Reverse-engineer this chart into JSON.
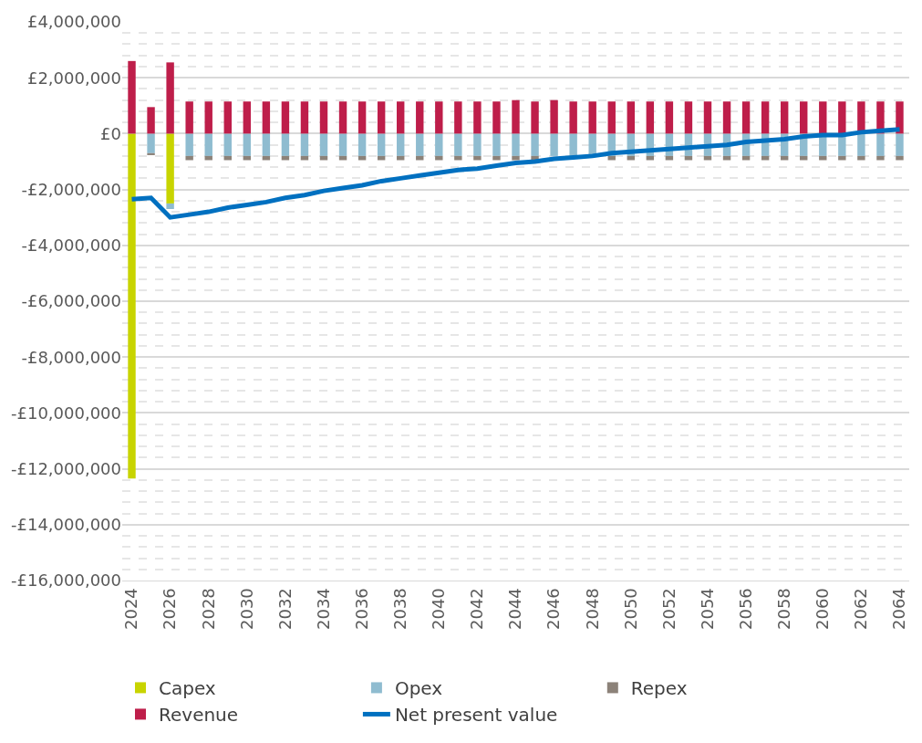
{
  "chart_data": {
    "type": "bar",
    "stacked": true,
    "x": [
      2024,
      2025,
      2026,
      2027,
      2028,
      2029,
      2030,
      2031,
      2032,
      2033,
      2034,
      2035,
      2036,
      2037,
      2038,
      2039,
      2040,
      2041,
      2042,
      2043,
      2044,
      2045,
      2046,
      2047,
      2048,
      2049,
      2050,
      2051,
      2052,
      2053,
      2054,
      2055,
      2056,
      2057,
      2058,
      2059,
      2060,
      2061,
      2062,
      2063,
      2064
    ],
    "series": [
      {
        "name": "Capex",
        "color": "#c8d400",
        "values": [
          -12350000,
          null,
          -2500000,
          null,
          null,
          null,
          null,
          null,
          null,
          null,
          null,
          null,
          null,
          null,
          null,
          null,
          null,
          null,
          null,
          null,
          null,
          null,
          null,
          null,
          null,
          null,
          null,
          null,
          null,
          null,
          null,
          null,
          null,
          null,
          null,
          null,
          null,
          null,
          null,
          null,
          null
        ]
      },
      {
        "name": "Opex",
        "color": "#8fbcd0",
        "values": [
          null,
          -700000,
          -200000,
          -800000,
          -800000,
          -800000,
          -800000,
          -800000,
          -800000,
          -800000,
          -800000,
          -800000,
          -800000,
          -800000,
          -800000,
          -800000,
          -800000,
          -800000,
          -800000,
          -800000,
          -800000,
          -800000,
          -800000,
          -800000,
          -800000,
          -800000,
          -800000,
          -800000,
          -800000,
          -800000,
          -800000,
          -800000,
          -800000,
          -800000,
          -800000,
          -800000,
          -800000,
          -800000,
          -800000,
          -800000,
          -800000
        ]
      },
      {
        "name": "Repex",
        "color": "#8c8279",
        "values": [
          null,
          -70000,
          null,
          -150000,
          -150000,
          -150000,
          -150000,
          -150000,
          -150000,
          -150000,
          -150000,
          -150000,
          -150000,
          -150000,
          -150000,
          -150000,
          -150000,
          -150000,
          -150000,
          -150000,
          -150000,
          -150000,
          null,
          null,
          null,
          -150000,
          -150000,
          -150000,
          -150000,
          -150000,
          -150000,
          -150000,
          -150000,
          -150000,
          -150000,
          -150000,
          -150000,
          -150000,
          -150000,
          -150000,
          -150000
        ]
      },
      {
        "name": "Revenue",
        "color": "#be1e4a",
        "values": [
          2600000,
          950000,
          2550000,
          1150000,
          1150000,
          1150000,
          1150000,
          1150000,
          1150000,
          1150000,
          1150000,
          1150000,
          1150000,
          1150000,
          1150000,
          1150000,
          1150000,
          1150000,
          1150000,
          1150000,
          1200000,
          1150000,
          1200000,
          1150000,
          1150000,
          1150000,
          1150000,
          1150000,
          1150000,
          1150000,
          1150000,
          1150000,
          1150000,
          1150000,
          1150000,
          1150000,
          1150000,
          1150000,
          1150000,
          1150000,
          1150000
        ]
      },
      {
        "name": "Net present value",
        "color": "#0070c0",
        "type": "line",
        "values": [
          -2350000,
          -2300000,
          -3000000,
          -2900000,
          -2800000,
          -2650000,
          -2550000,
          -2450000,
          -2300000,
          -2200000,
          -2050000,
          -1950000,
          -1850000,
          -1700000,
          -1600000,
          -1500000,
          -1400000,
          -1300000,
          -1250000,
          -1150000,
          -1050000,
          -1000000,
          -900000,
          -850000,
          -800000,
          -700000,
          -650000,
          -600000,
          -550000,
          -500000,
          -450000,
          -400000,
          -300000,
          -250000,
          -200000,
          -100000,
          -50000,
          -50000,
          50000,
          100000,
          150000
        ]
      }
    ],
    "xlim": [
      2023.5,
      2064.5
    ],
    "xticks": [
      2024,
      2026,
      2028,
      2030,
      2032,
      2034,
      2036,
      2038,
      2040,
      2042,
      2044,
      2046,
      2048,
      2050,
      2052,
      2054,
      2056,
      2058,
      2060,
      2062,
      2064
    ],
    "ylim": [
      -16000000,
      4000000
    ],
    "yticks": [
      {
        "value": 4000000,
        "label": "£4,000,000"
      },
      {
        "value": 2000000,
        "label": "£2,000,000"
      },
      {
        "value": 0,
        "label": "£0"
      },
      {
        "value": -2000000,
        "label": "-£2,000,000"
      },
      {
        "value": -4000000,
        "label": "-£4,000,000"
      },
      {
        "value": -6000000,
        "label": "-£6,000,000"
      },
      {
        "value": -8000000,
        "label": "-£8,000,000"
      },
      {
        "value": -10000000,
        "label": "-£10,000,000"
      },
      {
        "value": -12000000,
        "label": "-£12,000,000"
      },
      {
        "value": -14000000,
        "label": "-£14,000,000"
      },
      {
        "value": -16000000,
        "label": "-£16,000,000"
      }
    ],
    "grid": "y",
    "legend": "bottom"
  }
}
